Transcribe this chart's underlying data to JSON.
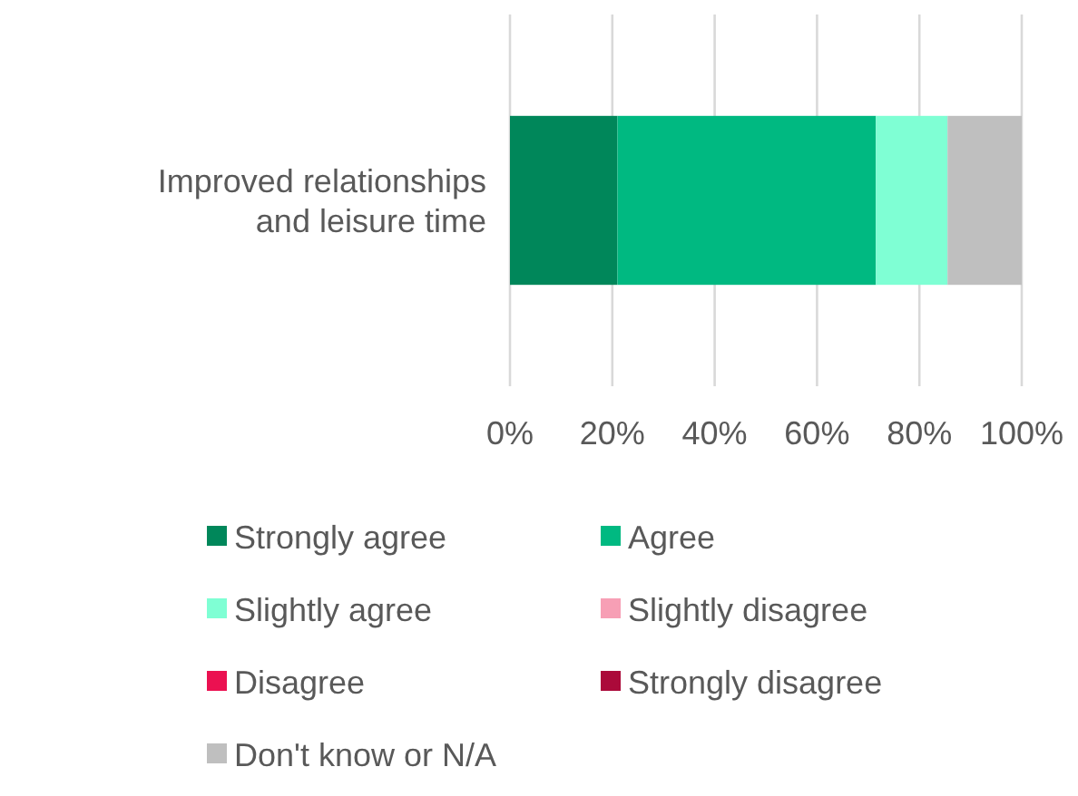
{
  "chart_data": {
    "type": "bar",
    "orientation": "horizontal",
    "stacked": true,
    "categories": [
      "Improved relationships and leisure time"
    ],
    "series": [
      {
        "name": "Strongly agree",
        "color": "#00875a",
        "values": [
          21
        ]
      },
      {
        "name": "Agree",
        "color": "#00b981",
        "values": [
          50.5
        ]
      },
      {
        "name": "Slightly agree",
        "color": "#7fffd4",
        "values": [
          14
        ]
      },
      {
        "name": "Slightly disagree",
        "color": "#f79fb5",
        "values": [
          0
        ]
      },
      {
        "name": "Disagree",
        "color": "#eb1151",
        "values": [
          0
        ]
      },
      {
        "name": "Strongly disagree",
        "color": "#ab0a3a",
        "values": [
          0
        ]
      },
      {
        "name": "Don't know or N/A",
        "color": "#bfbfbf",
        "values": [
          14.5
        ]
      }
    ],
    "xlim": [
      0,
      100
    ],
    "xticks": [
      {
        "value": 0,
        "label": "0%"
      },
      {
        "value": 20,
        "label": "20%"
      },
      {
        "value": 40,
        "label": "40%"
      },
      {
        "value": 60,
        "label": "60%"
      },
      {
        "value": 80,
        "label": "80%"
      },
      {
        "value": 100,
        "label": "100%"
      }
    ],
    "grid": "x",
    "legend": "bottom"
  }
}
